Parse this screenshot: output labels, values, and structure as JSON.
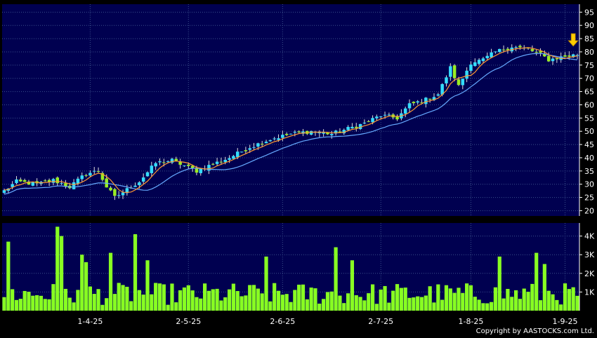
{
  "chart_data": {
    "type": "candlestick",
    "colors": {
      "background": "#000000",
      "plot_bg": "#000050",
      "grid": "#3a4f8a",
      "up_candle": "#33ddff",
      "down_candle": "#99ee22",
      "ma_short": "#ff9933",
      "ma_long": "#66aaff",
      "volume": "#88ff22",
      "arrow": "#ffcc00",
      "text": "#ffffff"
    },
    "price_axis": {
      "ylim": [
        18,
        98
      ],
      "ticks": [
        "20",
        "25",
        "30",
        "35",
        "40",
        "45",
        "50",
        "55",
        "60",
        "65",
        "70",
        "75",
        "80",
        "85",
        "90",
        "95"
      ]
    },
    "volume_axis": {
      "ylim": [
        0,
        4700
      ],
      "ticks": [
        {
          "value": 1000,
          "label": "1K"
        },
        {
          "value": 2000,
          "label": "2K"
        },
        {
          "value": 3000,
          "label": "3K"
        },
        {
          "value": 4000,
          "label": "4K"
        }
      ]
    },
    "x_labels": [
      {
        "index": 21,
        "label": "1-4-25"
      },
      {
        "index": 45,
        "label": "2-5-25"
      },
      {
        "index": 68,
        "label": "2-6-25"
      },
      {
        "index": 92,
        "label": "2-7-25"
      },
      {
        "index": 114,
        "label": "1-8-25"
      },
      {
        "index": 137,
        "label": "1-9-25"
      }
    ],
    "anchors": [
      [
        0,
        27.5
      ],
      [
        3,
        31
      ],
      [
        8,
        30
      ],
      [
        12,
        31.5
      ],
      [
        16,
        29
      ],
      [
        20,
        34
      ],
      [
        23,
        35
      ],
      [
        25,
        29
      ],
      [
        27,
        25
      ],
      [
        30,
        28
      ],
      [
        33,
        31
      ],
      [
        37,
        38
      ],
      [
        41,
        39
      ],
      [
        44,
        37
      ],
      [
        47,
        35
      ],
      [
        50,
        37
      ],
      [
        55,
        40
      ],
      [
        60,
        44
      ],
      [
        65,
        47
      ],
      [
        70,
        49
      ],
      [
        75,
        50
      ],
      [
        80,
        49
      ],
      [
        84,
        51
      ],
      [
        88,
        53
      ],
      [
        92,
        56
      ],
      [
        96,
        55
      ],
      [
        99,
        60
      ],
      [
        103,
        62
      ],
      [
        106,
        64
      ],
      [
        109,
        74
      ],
      [
        111,
        67
      ],
      [
        114,
        76
      ],
      [
        117,
        77
      ],
      [
        120,
        80
      ],
      [
        124,
        82
      ],
      [
        128,
        81
      ],
      [
        131,
        79
      ],
      [
        133,
        77
      ],
      [
        136,
        78
      ],
      [
        140,
        79
      ]
    ],
    "volume_peaks": [
      [
        1,
        3700
      ],
      [
        13,
        4500
      ],
      [
        14,
        4000
      ],
      [
        19,
        3000
      ],
      [
        20,
        2600
      ],
      [
        26,
        3100
      ],
      [
        32,
        4100
      ],
      [
        35,
        2700
      ],
      [
        64,
        2900
      ],
      [
        81,
        3400
      ],
      [
        85,
        2700
      ],
      [
        121,
        2900
      ],
      [
        130,
        3100
      ],
      [
        132,
        2500
      ]
    ],
    "copyright": "Copyright by AASTOCKS.com Ltd."
  }
}
